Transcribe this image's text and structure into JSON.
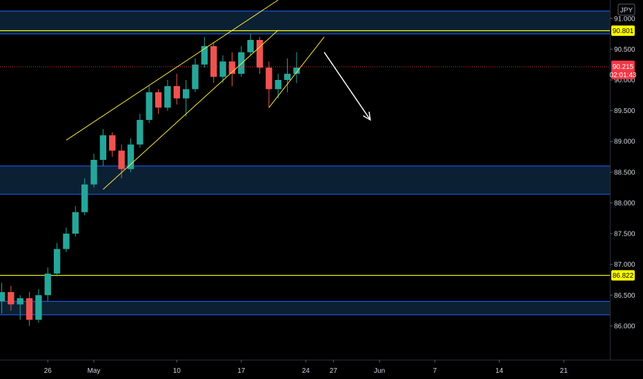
{
  "chart_data": {
    "type": "candlestick",
    "currency_label": "JPY",
    "ylim": [
      85.45,
      91.3
    ],
    "y_ticks": [
      {
        "value": 91.0,
        "label": "91.000"
      },
      {
        "value": 90.5,
        "label": "90.500"
      },
      {
        "value": 90.0,
        "label": "90.000"
      },
      {
        "value": 89.5,
        "label": "89.500"
      },
      {
        "value": 89.0,
        "label": "89.000"
      },
      {
        "value": 88.5,
        "label": "88.500"
      },
      {
        "value": 88.0,
        "label": "88.000"
      },
      {
        "value": 87.5,
        "label": "87.500"
      },
      {
        "value": 87.0,
        "label": "87.000"
      },
      {
        "value": 86.5,
        "label": "86.500"
      },
      {
        "value": 86.0,
        "label": "86.000"
      }
    ],
    "x_domain": [
      "2021-04-21",
      "2021-06-26"
    ],
    "x_ticks": [
      {
        "date": "2021-04-26",
        "label": "26"
      },
      {
        "date": "2021-05-01",
        "label": "May"
      },
      {
        "date": "2021-05-10",
        "label": "10"
      },
      {
        "date": "2021-05-17",
        "label": "17"
      },
      {
        "date": "2021-05-24",
        "label": "24"
      },
      {
        "date": "2021-05-27",
        "label": "27"
      },
      {
        "date": "2021-06-01",
        "label": "Jun"
      },
      {
        "date": "2021-06-07",
        "label": "7"
      },
      {
        "date": "2021-06-14",
        "label": "14"
      },
      {
        "date": "2021-06-21",
        "label": "21"
      }
    ],
    "zones": [
      {
        "top": 91.12,
        "bottom": 90.75,
        "color": "#2962ff"
      },
      {
        "top": 88.6,
        "bottom": 88.14,
        "color": "#2962ff"
      },
      {
        "top": 86.4,
        "bottom": 86.18,
        "color": "#2962ff"
      }
    ],
    "horizontal_lines": [
      {
        "value": 90.801,
        "label": "90.801",
        "color": "#ffff00"
      },
      {
        "value": 86.822,
        "label": "86.822",
        "color": "#ffff00"
      }
    ],
    "channel_lines": [
      {
        "from": {
          "date": "2021-04-28",
          "value": 89.02
        },
        "to": {
          "date": "2021-05-21",
          "value": 91.3
        }
      },
      {
        "from": {
          "date": "2021-05-02",
          "value": 88.22
        },
        "to": {
          "date": "2021-05-21",
          "value": 90.81
        }
      },
      {
        "from": {
          "date": "2021-05-20",
          "value": 89.55
        },
        "to": {
          "date": "2021-05-26",
          "value": 90.7
        }
      }
    ],
    "arrow": {
      "from": {
        "date": "2021-05-26",
        "value": 90.45
      },
      "to": {
        "date": "2021-05-31",
        "value": 89.35
      },
      "color": "#ffffff"
    },
    "last_price": {
      "value": 90.215,
      "label": "90.215",
      "countdown": "02:01:43",
      "color": "#f23645"
    },
    "colors": {
      "up": "#26a69a",
      "down": "#ef5350",
      "zone_fill": "#0c2236",
      "zone_border": "#2962ff",
      "background": "#000000"
    },
    "candles": [
      {
        "date": "2021-04-21",
        "o": 86.4,
        "h": 86.7,
        "l": 86.2,
        "c": 86.55
      },
      {
        "date": "2021-04-22",
        "o": 86.55,
        "h": 86.65,
        "l": 86.25,
        "c": 86.35
      },
      {
        "date": "2021-04-23",
        "o": 86.35,
        "h": 86.5,
        "l": 86.1,
        "c": 86.45
      },
      {
        "date": "2021-04-24",
        "o": 86.45,
        "h": 86.55,
        "l": 86.0,
        "c": 86.1
      },
      {
        "date": "2021-04-25",
        "o": 86.1,
        "h": 86.6,
        "l": 86.05,
        "c": 86.5
      },
      {
        "date": "2021-04-26",
        "o": 86.5,
        "h": 86.95,
        "l": 86.4,
        "c": 86.85
      },
      {
        "date": "2021-04-27",
        "o": 86.85,
        "h": 87.35,
        "l": 86.8,
        "c": 87.25
      },
      {
        "date": "2021-04-28",
        "o": 87.25,
        "h": 87.6,
        "l": 87.2,
        "c": 87.5
      },
      {
        "date": "2021-04-29",
        "o": 87.5,
        "h": 87.95,
        "l": 87.45,
        "c": 87.85
      },
      {
        "date": "2021-04-30",
        "o": 87.85,
        "h": 88.4,
        "l": 87.8,
        "c": 88.3
      },
      {
        "date": "2021-05-01",
        "o": 88.3,
        "h": 88.8,
        "l": 88.25,
        "c": 88.7
      },
      {
        "date": "2021-05-02",
        "o": 88.7,
        "h": 89.2,
        "l": 88.6,
        "c": 89.1
      },
      {
        "date": "2021-05-03",
        "o": 89.1,
        "h": 89.15,
        "l": 88.75,
        "c": 88.85
      },
      {
        "date": "2021-05-04",
        "o": 88.85,
        "h": 88.95,
        "l": 88.4,
        "c": 88.55
      },
      {
        "date": "2021-05-05",
        "o": 88.55,
        "h": 89.05,
        "l": 88.5,
        "c": 88.95
      },
      {
        "date": "2021-05-06",
        "o": 88.95,
        "h": 89.45,
        "l": 88.9,
        "c": 89.35
      },
      {
        "date": "2021-05-07",
        "o": 89.35,
        "h": 89.9,
        "l": 89.3,
        "c": 89.8
      },
      {
        "date": "2021-05-08",
        "o": 89.8,
        "h": 89.85,
        "l": 89.45,
        "c": 89.55
      },
      {
        "date": "2021-05-09",
        "o": 89.55,
        "h": 90.0,
        "l": 89.5,
        "c": 89.9
      },
      {
        "date": "2021-05-10",
        "o": 89.9,
        "h": 90.1,
        "l": 89.6,
        "c": 89.7
      },
      {
        "date": "2021-05-11",
        "o": 89.7,
        "h": 90.0,
        "l": 89.4,
        "c": 89.85
      },
      {
        "date": "2021-05-12",
        "o": 89.85,
        "h": 90.35,
        "l": 89.8,
        "c": 90.25
      },
      {
        "date": "2021-05-13",
        "o": 90.25,
        "h": 90.7,
        "l": 90.2,
        "c": 90.55
      },
      {
        "date": "2021-05-14",
        "o": 90.55,
        "h": 90.6,
        "l": 89.95,
        "c": 90.05
      },
      {
        "date": "2021-05-15",
        "o": 90.05,
        "h": 90.4,
        "l": 89.95,
        "c": 90.3
      },
      {
        "date": "2021-05-16",
        "o": 90.3,
        "h": 90.45,
        "l": 89.9,
        "c": 90.1
      },
      {
        "date": "2021-05-17",
        "o": 90.1,
        "h": 90.55,
        "l": 90.05,
        "c": 90.45
      },
      {
        "date": "2021-05-18",
        "o": 90.45,
        "h": 90.75,
        "l": 90.4,
        "c": 90.65
      },
      {
        "date": "2021-05-19",
        "o": 90.65,
        "h": 90.7,
        "l": 90.1,
        "c": 90.2
      },
      {
        "date": "2021-05-20",
        "o": 90.2,
        "h": 90.3,
        "l": 89.55,
        "c": 89.85
      },
      {
        "date": "2021-05-21",
        "o": 89.85,
        "h": 90.1,
        "l": 89.7,
        "c": 90.0
      },
      {
        "date": "2021-05-22",
        "o": 90.0,
        "h": 90.35,
        "l": 89.8,
        "c": 90.1
      },
      {
        "date": "2021-05-23",
        "o": 90.1,
        "h": 90.45,
        "l": 89.95,
        "c": 90.2
      }
    ]
  }
}
